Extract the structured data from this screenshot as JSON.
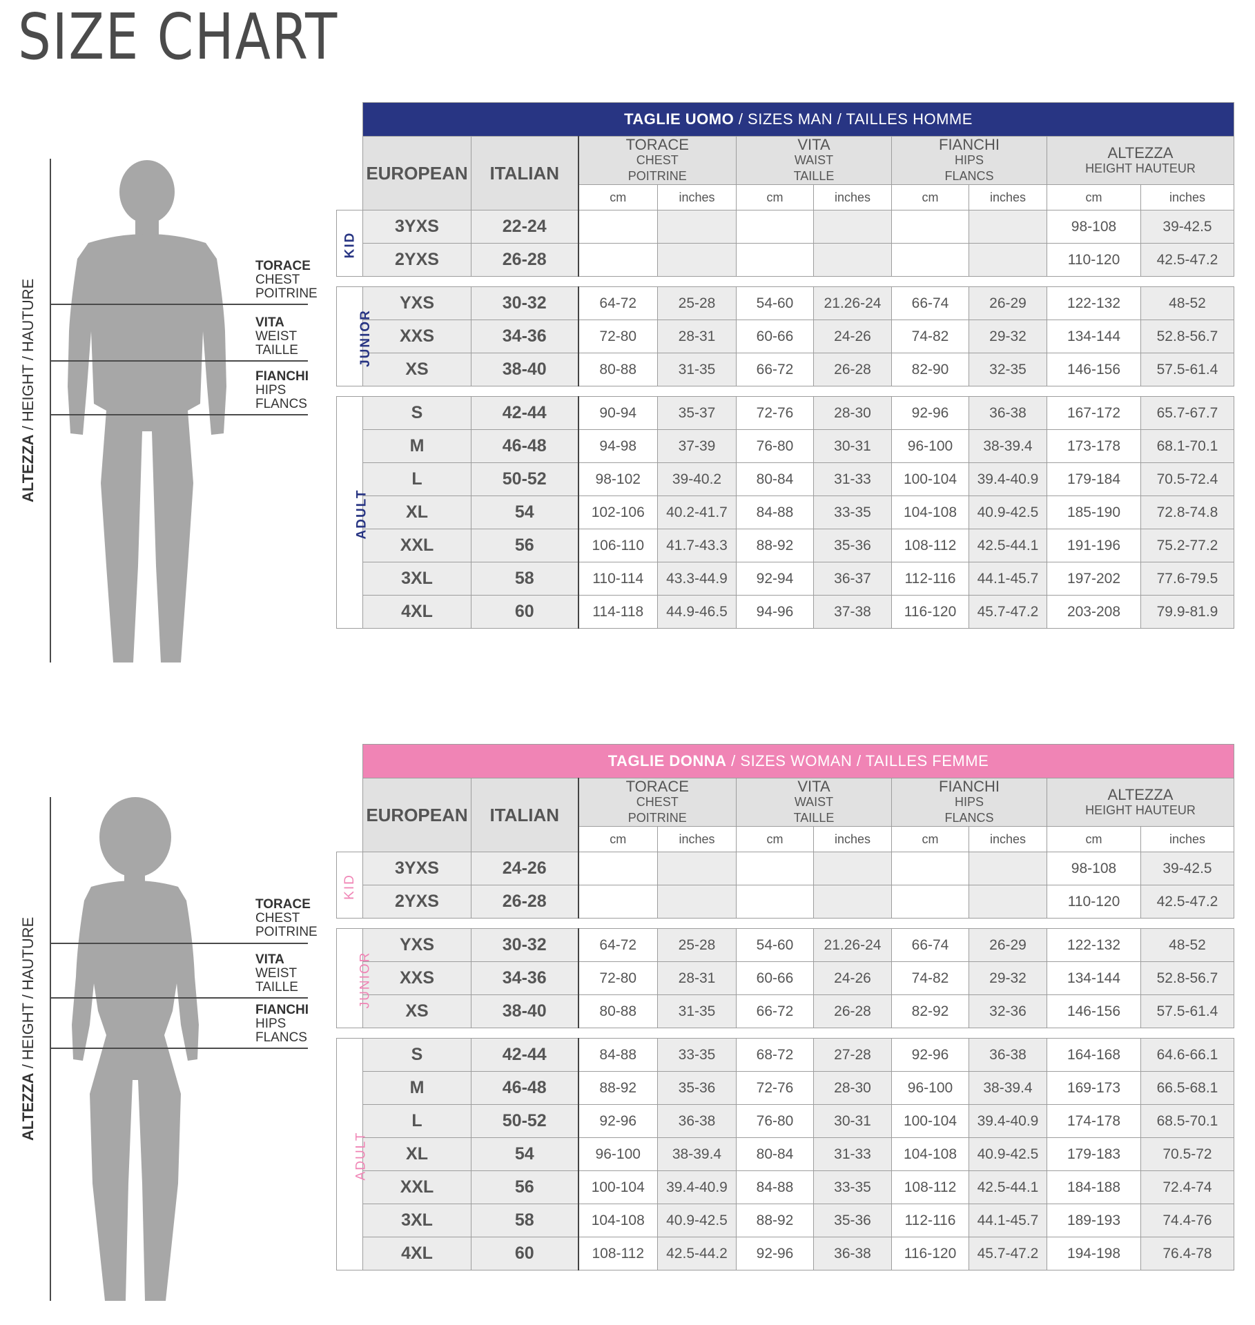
{
  "title": "SIZE CHART",
  "figure_labels": {
    "height": {
      "bold": "ALTEZZA",
      "rest": " / HEIGHT / HAUTURE"
    },
    "chest": [
      "TORACE",
      "CHEST",
      "POITRINE"
    ],
    "waist": [
      "VITA",
      "WEIST",
      "TAILLE"
    ],
    "hips": [
      "FIANCHI",
      "HIPS",
      "FLANCS"
    ]
  },
  "headers": {
    "european": "EUROPEAN",
    "italian": "ITALIAN",
    "chest": [
      "TORACE",
      "CHEST",
      "POITRINE"
    ],
    "waist": [
      "VITA",
      "WAIST",
      "TAILLE"
    ],
    "hips": [
      "FIANCHI",
      "HIPS",
      "FLANCS"
    ],
    "height": [
      "ALTEZZA",
      "HEIGHT HAUTEUR"
    ],
    "cm": "cm",
    "inches": "inches"
  },
  "colors": {
    "man_banner": "#283583",
    "woman_banner": "#f084b5"
  },
  "man": {
    "banner": {
      "bold": "TAGLIE UOMO",
      "rest": " / SIZES MAN / TAILLES HOMME"
    },
    "groups": [
      {
        "label": "KID",
        "rows": [
          [
            "3YXS",
            "22-24",
            "",
            "",
            "",
            "",
            "",
            "",
            "98-108",
            "39-42.5"
          ],
          [
            "2YXS",
            "26-28",
            "",
            "",
            "",
            "",
            "",
            "",
            "110-120",
            "42.5-47.2"
          ]
        ]
      },
      {
        "label": "JUNIOR",
        "rows": [
          [
            "YXS",
            "30-32",
            "64-72",
            "25-28",
            "54-60",
            "21.26-24",
            "66-74",
            "26-29",
            "122-132",
            "48-52"
          ],
          [
            "XXS",
            "34-36",
            "72-80",
            "28-31",
            "60-66",
            "24-26",
            "74-82",
            "29-32",
            "134-144",
            "52.8-56.7"
          ],
          [
            "XS",
            "38-40",
            "80-88",
            "31-35",
            "66-72",
            "26-28",
            "82-90",
            "32-35",
            "146-156",
            "57.5-61.4"
          ]
        ]
      },
      {
        "label": "ADULT",
        "rows": [
          [
            "S",
            "42-44",
            "90-94",
            "35-37",
            "72-76",
            "28-30",
            "92-96",
            "36-38",
            "167-172",
            "65.7-67.7"
          ],
          [
            "M",
            "46-48",
            "94-98",
            "37-39",
            "76-80",
            "30-31",
            "96-100",
            "38-39.4",
            "173-178",
            "68.1-70.1"
          ],
          [
            "L",
            "50-52",
            "98-102",
            "39-40.2",
            "80-84",
            "31-33",
            "100-104",
            "39.4-40.9",
            "179-184",
            "70.5-72.4"
          ],
          [
            "XL",
            "54",
            "102-106",
            "40.2-41.7",
            "84-88",
            "33-35",
            "104-108",
            "40.9-42.5",
            "185-190",
            "72.8-74.8"
          ],
          [
            "XXL",
            "56",
            "106-110",
            "41.7-43.3",
            "88-92",
            "35-36",
            "108-112",
            "42.5-44.1",
            "191-196",
            "75.2-77.2"
          ],
          [
            "3XL",
            "58",
            "110-114",
            "43.3-44.9",
            "92-94",
            "36-37",
            "112-116",
            "44.1-45.7",
            "197-202",
            "77.6-79.5"
          ],
          [
            "4XL",
            "60",
            "114-118",
            "44.9-46.5",
            "94-96",
            "37-38",
            "116-120",
            "45.7-47.2",
            "203-208",
            "79.9-81.9"
          ]
        ]
      }
    ]
  },
  "woman": {
    "banner": {
      "bold": "TAGLIE DONNA",
      "rest": " / SIZES WOMAN / TAILLES FEMME"
    },
    "groups": [
      {
        "label": "KID",
        "rows": [
          [
            "3YXS",
            "24-26",
            "",
            "",
            "",
            "",
            "",
            "",
            "98-108",
            "39-42.5"
          ],
          [
            "2YXS",
            "26-28",
            "",
            "",
            "",
            "",
            "",
            "",
            "110-120",
            "42.5-47.2"
          ]
        ]
      },
      {
        "label": "JUNIOR",
        "rows": [
          [
            "YXS",
            "30-32",
            "64-72",
            "25-28",
            "54-60",
            "21.26-24",
            "66-74",
            "26-29",
            "122-132",
            "48-52"
          ],
          [
            "XXS",
            "34-36",
            "72-80",
            "28-31",
            "60-66",
            "24-26",
            "74-82",
            "29-32",
            "134-144",
            "52.8-56.7"
          ],
          [
            "XS",
            "38-40",
            "80-88",
            "31-35",
            "66-72",
            "26-28",
            "82-92",
            "32-36",
            "146-156",
            "57.5-61.4"
          ]
        ]
      },
      {
        "label": "ADULT",
        "rows": [
          [
            "S",
            "42-44",
            "84-88",
            "33-35",
            "68-72",
            "27-28",
            "92-96",
            "36-38",
            "164-168",
            "64.6-66.1"
          ],
          [
            "M",
            "46-48",
            "88-92",
            "35-36",
            "72-76",
            "28-30",
            "96-100",
            "38-39.4",
            "169-173",
            "66.5-68.1"
          ],
          [
            "L",
            "50-52",
            "92-96",
            "36-38",
            "76-80",
            "30-31",
            "100-104",
            "39.4-40.9",
            "174-178",
            "68.5-70.1"
          ],
          [
            "XL",
            "54",
            "96-100",
            "38-39.4",
            "80-84",
            "31-33",
            "104-108",
            "40.9-42.5",
            "179-183",
            "70.5-72"
          ],
          [
            "XXL",
            "56",
            "100-104",
            "39.4-40.9",
            "84-88",
            "33-35",
            "108-112",
            "42.5-44.1",
            "184-188",
            "72.4-74"
          ],
          [
            "3XL",
            "58",
            "104-108",
            "40.9-42.5",
            "88-92",
            "35-36",
            "112-116",
            "44.1-45.7",
            "189-193",
            "74.4-76"
          ],
          [
            "4XL",
            "60",
            "108-112",
            "42.5-44.2",
            "92-96",
            "36-38",
            "116-120",
            "45.7-47.2",
            "194-198",
            "76.4-78"
          ]
        ]
      }
    ]
  }
}
